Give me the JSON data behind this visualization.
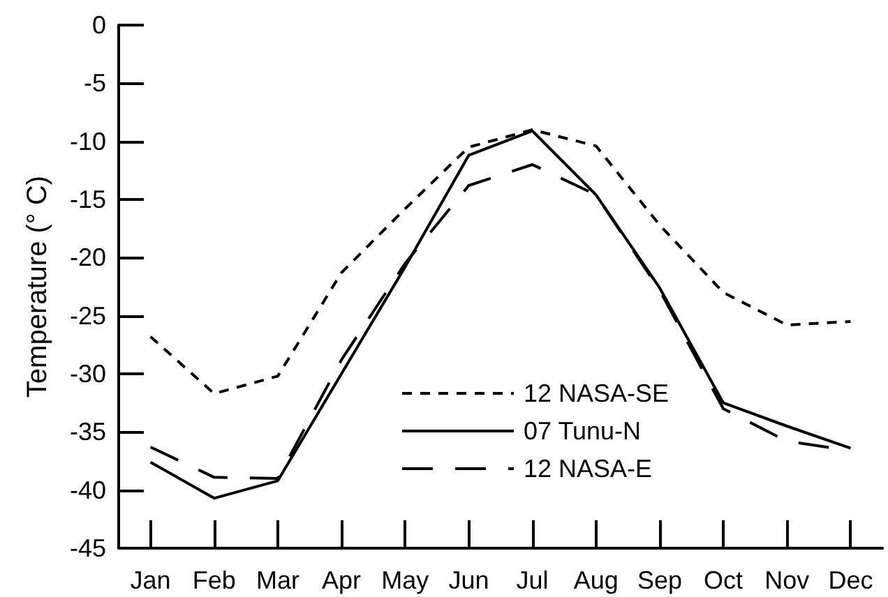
{
  "chart_data": {
    "type": "line",
    "ylabel": "Temperature (° C)",
    "categories": [
      "Jan",
      "Feb",
      "Mar",
      "Apr",
      "May",
      "Jun",
      "Jul",
      "Aug",
      "Sep",
      "Oct",
      "Nov",
      "Dec"
    ],
    "series": [
      {
        "name": "12 NASA-SE",
        "color": "#000000",
        "line_style": "dashed",
        "values": [
          -26.8,
          -31.7,
          -30.2,
          -21.3,
          -15.8,
          -10.5,
          -9.0,
          -10.4,
          -17.2,
          -23.0,
          -25.8,
          -25.5
        ]
      },
      {
        "name": "07 Tunu-N",
        "color": "#000000",
        "line_style": "solid",
        "values": [
          -37.6,
          -40.7,
          -39.2,
          -30.0,
          -20.8,
          -11.2,
          -9.1,
          -14.6,
          -22.6,
          -32.5,
          -34.5,
          -36.4
        ]
      },
      {
        "name": "12 NASA-E",
        "color": "#000000",
        "line_style": "dashed",
        "values": [
          -36.3,
          -38.9,
          -39.0,
          -28.8,
          -20.5,
          -13.8,
          -12.0,
          -14.6,
          -22.8,
          -33.0,
          -35.8,
          -36.6
        ]
      }
    ],
    "ylim": [
      -45,
      0
    ],
    "yticks": [
      -45,
      -40,
      -35,
      -30,
      -25,
      -20,
      -15,
      -10,
      -5,
      0
    ],
    "grid": false,
    "legend": "bottom",
    "marker": "none"
  }
}
